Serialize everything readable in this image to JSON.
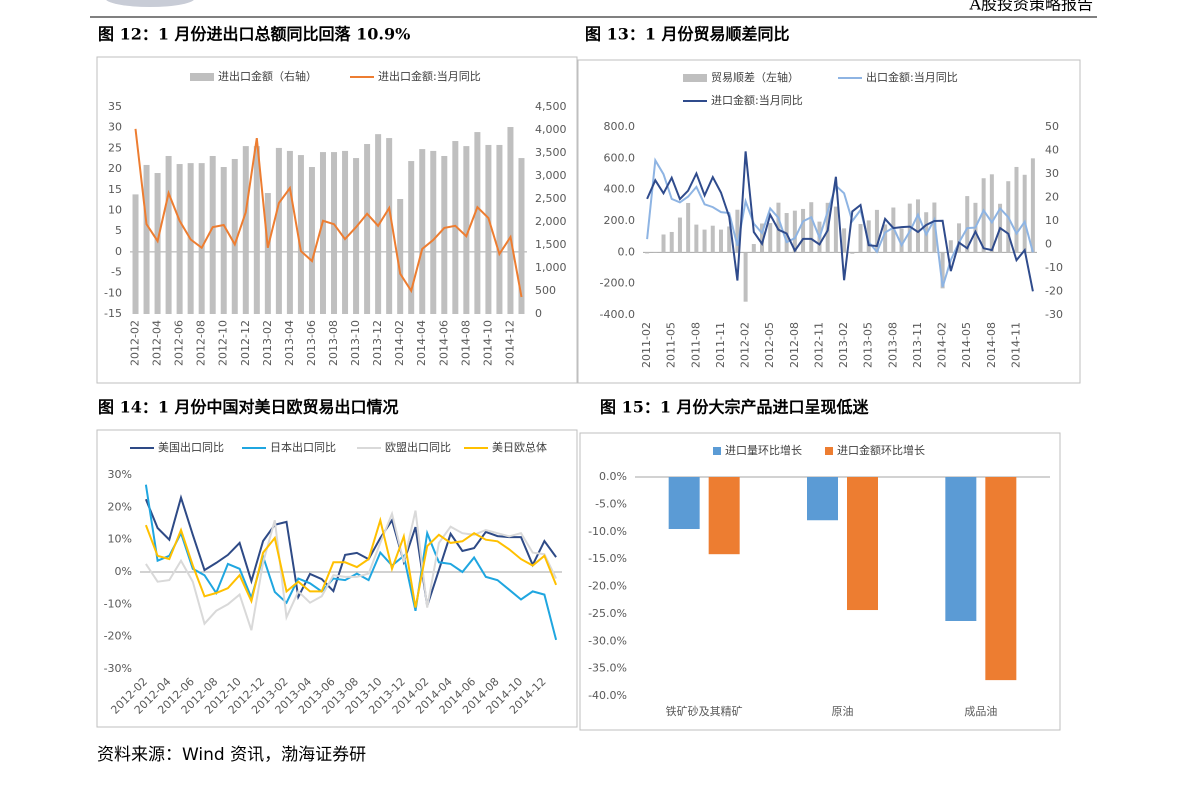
{
  "header": {
    "report": "A股投资策略报告"
  },
  "source": "资料来源：Wind 资讯，渤海证券研",
  "chart_data": [
    {
      "type": "combo",
      "title": "图 12：1 月份进出口总额同比回落 10.9%",
      "categories": [
        "2012-02",
        null,
        "2012-04",
        null,
        "2012-06",
        null,
        "2012-08",
        null,
        "2012-10",
        null,
        "2012-12",
        null,
        "2013-02",
        null,
        "2013-04",
        null,
        "2013-06",
        null,
        "2013-08",
        null,
        "2013-10",
        null,
        "2013-12",
        null,
        "2014-02",
        null,
        "2014-04",
        null,
        "2014-06",
        null,
        "2014-08",
        null,
        "2014-10",
        null,
        "2014-12",
        null
      ],
      "series": [
        {
          "name": "进出口金额（右轴）",
          "kind": "bar",
          "axis": "y2",
          "color": "#bfbfbf",
          "values": [
            2600,
            3240,
            3065,
            3435,
            3260,
            3280,
            3280,
            3435,
            3195,
            3370,
            3650,
            3650,
            2630,
            3610,
            3545,
            3455,
            3195,
            3520,
            3520,
            3545,
            3390,
            3695,
            3910,
            3825,
            2500,
            3325,
            3585,
            3545,
            3435,
            3760,
            3650,
            3955,
            3675,
            3675,
            4065,
            3390
          ]
        },
        {
          "name": "进出口金额:当月同比",
          "kind": "line",
          "color": "#ed7d31",
          "values": [
            29.7,
            6.7,
            2.6,
            14.2,
            7.5,
            3.0,
            1.0,
            6.0,
            6.5,
            1.8,
            9.6,
            27.5,
            1.0,
            11.8,
            15.4,
            0.2,
            -2.2,
            7.5,
            6.7,
            3.1,
            6.0,
            9.2,
            6.3,
            10.6,
            -5.3,
            -9.4,
            0.7,
            2.9,
            5.8,
            6.3,
            3.8,
            10.8,
            8.2,
            -0.5,
            3.6,
            -10.9
          ]
        }
      ],
      "ylim": [
        -15,
        35
      ],
      "yticks": [
        -15,
        -10,
        -5,
        0,
        5,
        10,
        15,
        20,
        25,
        30,
        35
      ],
      "y2lim": [
        0,
        4500
      ],
      "y2ticks": [
        0,
        500,
        {
          "value": 1000,
          "label": "1,000"
        },
        {
          "value": 1500,
          "label": "1,500"
        },
        {
          "value": 2000,
          "label": "2,000"
        },
        {
          "value": 2500,
          "label": "2,500"
        },
        {
          "value": 3000,
          "label": "3,000"
        },
        {
          "value": 3500,
          "label": "3,500"
        },
        {
          "value": 4000,
          "label": "4,000"
        },
        {
          "value": 4500,
          "label": "4,500"
        }
      ],
      "grid": false
    },
    {
      "type": "combo",
      "title": "图 13：1 月份贸易顺差同比",
      "categories": [
        "2011-02",
        null,
        null,
        "2011-05",
        null,
        null,
        "2011-08",
        null,
        null,
        "2011-11",
        null,
        null,
        "2012-02",
        null,
        null,
        "2012-05",
        null,
        null,
        "2012-08",
        null,
        null,
        "2012-11",
        null,
        null,
        "2013-02",
        null,
        null,
        "2013-05",
        null,
        null,
        "2013-08",
        null,
        null,
        "2013-11",
        null,
        null,
        "2014-02",
        null,
        null,
        "2014-05",
        null,
        null,
        "2014-08",
        null,
        null,
        "2014-11",
        null,
        null
      ],
      "series": [
        {
          "name": "贸易顺差（左轴）",
          "kind": "bar",
          "color": "#bfbfbf",
          "values": [
            -7,
            1,
            114,
            130,
            222,
            315,
            177,
            145,
            170,
            145,
            165,
            272,
            -315,
            53,
            184,
            187,
            317,
            251,
            266,
            277,
            320,
            196,
            316,
            292,
            153,
            -9,
            181,
            204,
            271,
            178,
            286,
            152,
            311,
            338,
            256,
            318,
            -230,
            77,
            185,
            359,
            316,
            473,
            498,
            310,
            454,
            545,
            495,
            600
          ]
        },
        {
          "name": "出口金额:当月同比",
          "kind": "line",
          "axis": "y2",
          "color": "#8eb4e3",
          "values": [
            2.3,
            35.8,
            29.9,
            19.4,
            17.9,
            20.4,
            24.5,
            17.1,
            15.9,
            13.8,
            13.4,
            -0.5,
            18.4,
            8.9,
            4.9,
            15.3,
            11.3,
            1.0,
            2.7,
            9.9,
            11.6,
            2.9,
            14.1,
            25.0,
            21.8,
            10.0,
            14.7,
            1.0,
            -3.1,
            5.1,
            7.2,
            -0.3,
            5.6,
            12.7,
            4.3,
            10.6,
            -18.1,
            -6.6,
            0.9,
            7.0,
            7.2,
            14.5,
            9.4,
            15.3,
            11.6,
            4.7,
            9.7,
            -3.3
          ]
        },
        {
          "name": "进口金额:当月同比",
          "kind": "line",
          "axis": "y2",
          "color": "#2f4b8c",
          "values": [
            19.4,
            27.3,
            21.8,
            28.4,
            19.3,
            22.9,
            30.2,
            20.9,
            28.7,
            22.1,
            11.8,
            -15.3,
            39.6,
            5.3,
            0.3,
            12.7,
            6.3,
            4.7,
            -2.6,
            2.4,
            2.4,
            0.0,
            6.0,
            28.8,
            -15.2,
            14.1,
            16.8,
            -0.3,
            -0.7,
            10.9,
            7.0,
            7.4,
            7.6,
            5.3,
            8.3,
            10.0,
            10.1,
            -11.3,
            0.8,
            -1.6,
            5.5,
            -1.6,
            -2.4,
            7.0,
            4.6,
            -6.7,
            -2.4,
            -19.9
          ]
        }
      ],
      "ylim": [
        -400,
        800
      ],
      "yticks": [
        {
          "value": -400,
          "label": "-400.0"
        },
        {
          "value": -200,
          "label": "-200.0"
        },
        {
          "value": 0,
          "label": "0.0"
        },
        {
          "value": 200,
          "label": "200.0"
        },
        {
          "value": 400,
          "label": "400.0"
        },
        {
          "value": 600,
          "label": "600.0"
        },
        {
          "value": 800,
          "label": "800.0"
        }
      ],
      "y2lim": [
        -30,
        50
      ],
      "y2ticks": [
        -30,
        -20,
        -10,
        0,
        10,
        20,
        30,
        40,
        50
      ],
      "grid": false
    },
    {
      "type": "line",
      "title": "图 14：1 月份中国对美日欧贸易出口情况",
      "categories": [
        "2012-02",
        null,
        "2012-04",
        null,
        "2012-06",
        null,
        "2012-08",
        null,
        "2012-10",
        null,
        "2012-12",
        null,
        "2013-02",
        null,
        "2013-04",
        null,
        "2013-06",
        null,
        "2013-08",
        null,
        "2013-10",
        null,
        "2013-12",
        null,
        "2014-02",
        null,
        "2014-04",
        null,
        "2014-06",
        null,
        "2014-08",
        null,
        "2014-10",
        null,
        "2014-12",
        null
      ],
      "series": [
        {
          "name": "美国出口同比",
          "color": "#2e4a86",
          "values": [
            22.5,
            13.6,
            10,
            23,
            11.5,
            0.6,
            2.8,
            5.3,
            9,
            -2.8,
            9.6,
            14.6,
            15.5,
            -7.7,
            -0.6,
            -2.2,
            -5.9,
            5.3,
            5.9,
            4.0,
            10.5,
            16,
            3.1,
            13.9,
            -10.5,
            0.6,
            11.8,
            6.5,
            7.4,
            12.4,
            11.1,
            10.8,
            10.8,
            2.2,
            9.6,
            4.6
          ]
        },
        {
          "name": "日本出口同比",
          "color": "#1fa6e0",
          "values": [
            27,
            3.5,
            5,
            12,
            1,
            -1,
            -6.5,
            2.5,
            1,
            -8,
            4.8,
            -6.2,
            -9.5,
            -2,
            -3.5,
            -6,
            -2,
            -2.5,
            -0.5,
            -2.5,
            6,
            2,
            5,
            -12,
            12,
            3,
            2.5,
            0,
            4.5,
            -1.5,
            -2.5,
            -5.5,
            -8.5,
            -6,
            -7,
            -21
          ]
        },
        {
          "name": "欧盟出口同比",
          "color": "#d9d9d9",
          "values": [
            2.5,
            -3,
            -2.5,
            3.5,
            -3,
            -16,
            -12,
            -10,
            -7,
            -18,
            3,
            16,
            -14,
            -6,
            -9.5,
            -7.5,
            -1,
            -1.5,
            -1.5,
            -0.5,
            9,
            18,
            3,
            19,
            -11,
            9,
            14,
            12,
            11.5,
            13,
            12,
            11,
            12,
            6,
            5.5,
            -2
          ]
        },
        {
          "name": "美日欧总体",
          "color": "#ffc000",
          "values": [
            14.5,
            5,
            4,
            13,
            2,
            -7.5,
            -6.5,
            -5,
            -1,
            -9,
            6,
            10.5,
            -6,
            -3,
            -6,
            -6,
            3,
            3,
            1.5,
            4,
            16,
            1,
            11,
            -11,
            8,
            11.5,
            9,
            9.5,
            12,
            10,
            9.5,
            7,
            4,
            2,
            5,
            -4
          ]
        }
      ],
      "ylim": [
        -30,
        30
      ],
      "yticks": [
        {
          "value": -30,
          "label": "-30%"
        },
        {
          "value": -20,
          "label": "-20%"
        },
        {
          "value": -10,
          "label": "-10%"
        },
        {
          "value": 0,
          "label": "0%"
        },
        {
          "value": 10,
          "label": "10%"
        },
        {
          "value": 20,
          "label": "20%"
        },
        {
          "value": 30,
          "label": "30%"
        }
      ],
      "grid": false
    },
    {
      "type": "bar",
      "title": "图 15：1 月份大宗产品进口呈现低迷",
      "categories": [
        "铁矿砂及其精矿",
        "原油",
        "成品油"
      ],
      "series": [
        {
          "name": "进口量环比增长",
          "color": "#5b9bd5",
          "values": [
            -9.5,
            -7.9,
            -26.3
          ]
        },
        {
          "name": "进口金额环比增长",
          "color": "#ed7d31",
          "values": [
            -14.1,
            -24.3,
            -37.1
          ]
        }
      ],
      "ylim": [
        -40,
        0
      ],
      "yticks": [
        {
          "value": -40,
          "label": "-40.0%"
        },
        {
          "value": -35,
          "label": "-35.0%"
        },
        {
          "value": -30,
          "label": "-30.0%"
        },
        {
          "value": -25,
          "label": "-25.0%"
        },
        {
          "value": -20,
          "label": "-20.0%"
        },
        {
          "value": -15,
          "label": "-15.0%"
        },
        {
          "value": -10,
          "label": "-10.0%"
        },
        {
          "value": -5,
          "label": "-5.0%"
        },
        {
          "value": 0,
          "label": "0.0%"
        }
      ],
      "grid": false
    }
  ]
}
